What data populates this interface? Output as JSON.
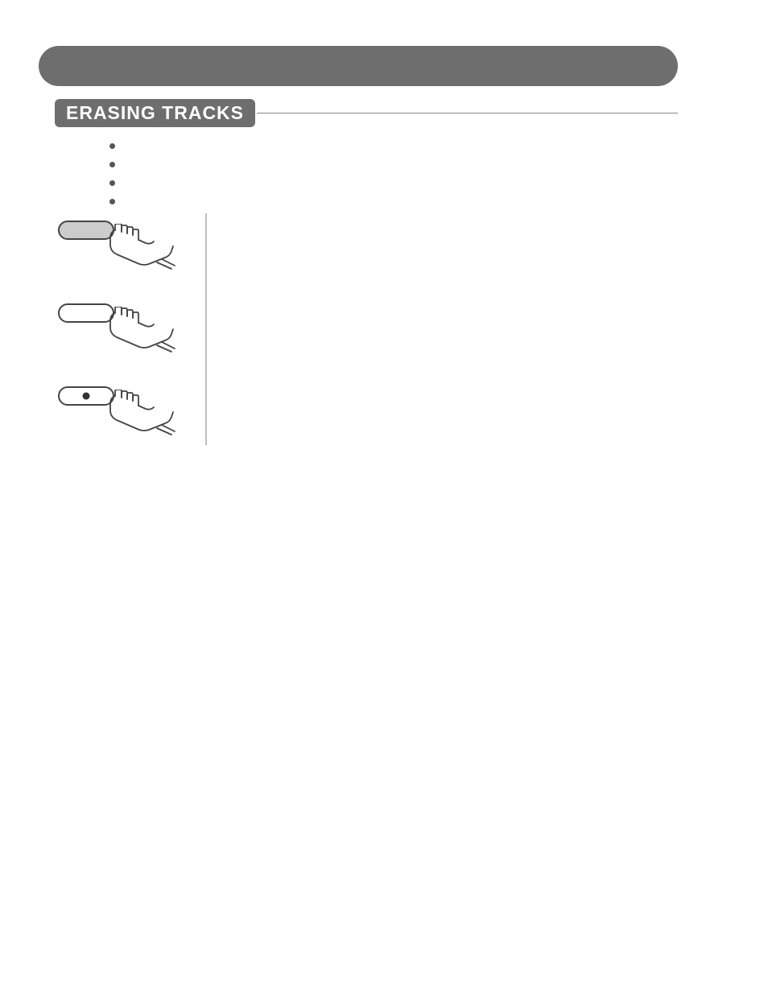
{
  "section": {
    "title": "ERASING TRACKS"
  },
  "bullets": [
    {
      "id": 1
    },
    {
      "id": 2
    },
    {
      "id": 3
    },
    {
      "id": 4
    }
  ],
  "buttons": [
    {
      "variant": "filled",
      "hasDot": false,
      "name": "button-press-1"
    },
    {
      "variant": "plain",
      "hasDot": false,
      "name": "button-press-2"
    },
    {
      "variant": "plain",
      "hasDot": true,
      "name": "button-press-3"
    }
  ],
  "colors": {
    "headerBar": "#6e6e6e",
    "labelText": "#ffffff",
    "divider": "#bfbfbf",
    "bullet": "#555555",
    "pillBorder": "#444444",
    "pillFill": "#cccccc"
  }
}
